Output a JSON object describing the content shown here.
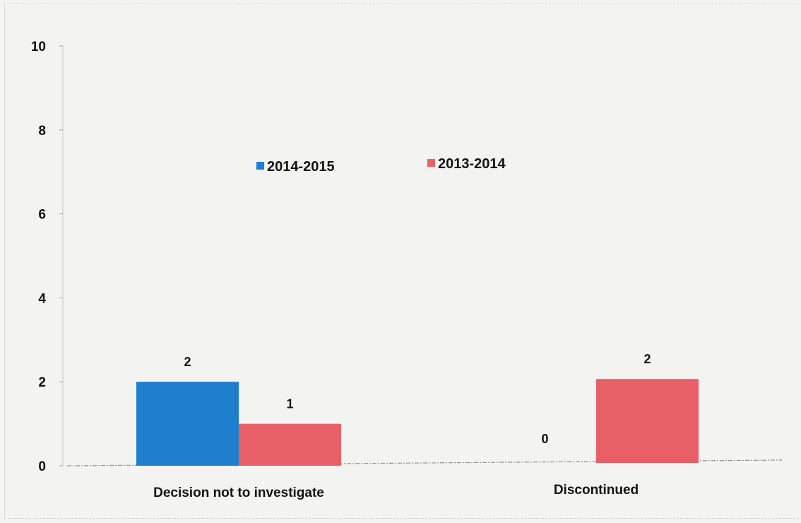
{
  "chart_data": {
    "type": "bar",
    "title": "",
    "xlabel": "",
    "ylabel": "",
    "categories": [
      "Decision not to investigate",
      "Discontinued"
    ],
    "series": [
      {
        "name": "2014-2015",
        "values": [
          2,
          0
        ],
        "color": "#1f7fcf"
      },
      {
        "name": "2013-2014",
        "values": [
          1,
          2
        ],
        "color": "#e85f67"
      }
    ],
    "ylim": [
      0,
      10
    ],
    "yticks": [
      0,
      2,
      4,
      6,
      8,
      10
    ],
    "data_labels": true,
    "grid": false,
    "legend_position": "top-center"
  }
}
